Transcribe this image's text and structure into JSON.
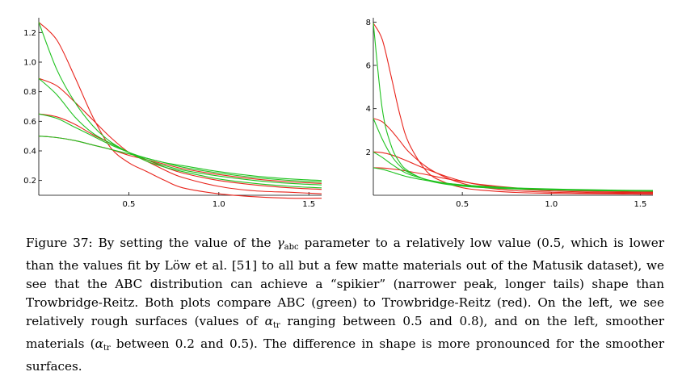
{
  "chart_data": [
    {
      "type": "line",
      "title": "",
      "xlabel": "",
      "ylabel": "",
      "xlim": [
        0,
        1.5708
      ],
      "ylim": [
        0.1,
        1.3
      ],
      "xticks": [
        "0.5",
        "1.0",
        "1.5"
      ],
      "yticks": [
        "0.2",
        "0.4",
        "0.6",
        "0.8",
        "1.0",
        "1.2"
      ],
      "grid": false,
      "x": [
        0.0,
        0.1,
        0.2,
        0.3,
        0.4,
        0.5,
        0.6,
        0.7,
        0.8,
        1.0,
        1.2,
        1.4,
        1.5708
      ],
      "series": [
        {
          "color": "#e8241c",
          "values": [
            1.27,
            1.15,
            0.9,
            0.63,
            0.42,
            0.32,
            0.26,
            0.2,
            0.15,
            0.11,
            0.09,
            0.08,
            0.08
          ]
        },
        {
          "color": "#e8241c",
          "values": [
            0.89,
            0.84,
            0.73,
            0.61,
            0.49,
            0.39,
            0.33,
            0.27,
            0.22,
            0.16,
            0.13,
            0.12,
            0.11
          ]
        },
        {
          "color": "#e8241c",
          "values": [
            0.65,
            0.63,
            0.58,
            0.51,
            0.45,
            0.39,
            0.34,
            0.29,
            0.25,
            0.2,
            0.17,
            0.15,
            0.14
          ]
        },
        {
          "color": "#e8241c",
          "values": [
            0.5,
            0.49,
            0.47,
            0.44,
            0.41,
            0.37,
            0.34,
            0.31,
            0.28,
            0.24,
            0.21,
            0.19,
            0.18
          ]
        },
        {
          "color": "#1fc21f",
          "values": [
            1.27,
            0.95,
            0.73,
            0.57,
            0.46,
            0.39,
            0.33,
            0.29,
            0.26,
            0.21,
            0.18,
            0.16,
            0.15
          ]
        },
        {
          "color": "#1fc21f",
          "values": [
            0.89,
            0.78,
            0.63,
            0.52,
            0.45,
            0.39,
            0.34,
            0.3,
            0.27,
            0.23,
            0.2,
            0.18,
            0.17
          ]
        },
        {
          "color": "#1fc21f",
          "values": [
            0.65,
            0.62,
            0.56,
            0.5,
            0.44,
            0.39,
            0.35,
            0.32,
            0.29,
            0.25,
            0.22,
            0.2,
            0.19
          ]
        },
        {
          "color": "#1fc21f",
          "values": [
            0.5,
            0.49,
            0.47,
            0.44,
            0.41,
            0.38,
            0.35,
            0.32,
            0.3,
            0.26,
            0.23,
            0.21,
            0.2
          ]
        }
      ]
    },
    {
      "type": "line",
      "title": "",
      "xlabel": "",
      "ylabel": "",
      "xlim": [
        0,
        1.5708
      ],
      "ylim": [
        0,
        8.2
      ],
      "xticks": [
        "0.5",
        "1.0",
        "1.5"
      ],
      "yticks": [
        "2",
        "4",
        "6",
        "8"
      ],
      "grid": false,
      "x": [
        0.0,
        0.05,
        0.1,
        0.15,
        0.2,
        0.3,
        0.4,
        0.5,
        0.6,
        0.8,
        1.0,
        1.2,
        1.4,
        1.5708
      ],
      "series": [
        {
          "color": "#e8241c",
          "values": [
            7.95,
            7.2,
            5.5,
            3.7,
            2.4,
            1.1,
            0.6,
            0.35,
            0.24,
            0.13,
            0.09,
            0.07,
            0.06,
            0.05
          ]
        },
        {
          "color": "#e8241c",
          "values": [
            3.55,
            3.4,
            3.0,
            2.5,
            2.0,
            1.3,
            0.85,
            0.55,
            0.38,
            0.21,
            0.14,
            0.11,
            0.09,
            0.08
          ]
        },
        {
          "color": "#e8241c",
          "values": [
            2.0,
            1.97,
            1.87,
            1.72,
            1.55,
            1.2,
            0.9,
            0.65,
            0.48,
            0.29,
            0.2,
            0.15,
            0.13,
            0.12
          ]
        },
        {
          "color": "#e8241c",
          "values": [
            1.27,
            1.26,
            1.22,
            1.17,
            1.1,
            0.95,
            0.78,
            0.63,
            0.5,
            0.34,
            0.25,
            0.2,
            0.17,
            0.15
          ]
        },
        {
          "color": "#1fc21f",
          "values": [
            7.95,
            4.0,
            2.3,
            1.5,
            1.1,
            0.7,
            0.52,
            0.42,
            0.36,
            0.29,
            0.25,
            0.22,
            0.2,
            0.19
          ]
        },
        {
          "color": "#1fc21f",
          "values": [
            3.55,
            2.6,
            1.85,
            1.35,
            1.05,
            0.72,
            0.55,
            0.45,
            0.38,
            0.3,
            0.26,
            0.23,
            0.21,
            0.2
          ]
        },
        {
          "color": "#1fc21f",
          "values": [
            2.0,
            1.75,
            1.45,
            1.18,
            0.97,
            0.72,
            0.57,
            0.47,
            0.4,
            0.32,
            0.27,
            0.24,
            0.22,
            0.21
          ]
        },
        {
          "color": "#1fc21f",
          "values": [
            1.27,
            1.2,
            1.08,
            0.95,
            0.84,
            0.68,
            0.56,
            0.48,
            0.42,
            0.34,
            0.29,
            0.26,
            0.23,
            0.22
          ]
        }
      ]
    }
  ],
  "caption": {
    "s1": "Figure 37: By setting the value of the ",
    "gamma": "γ",
    "gamma_sub": "abc",
    "s2": " parameter to a relatively low value (0.5, which is lower than the values fit by Löw et al. [51] to all but a few matte materials out of the Matusik dataset), we see that the ABC distribution can achieve a “spikier” (narrower peak, longer tails) shape than Trowbridge-Reitz. Both plots compare ABC (green) to Trowbridge-Reitz (red). On the left, we see relatively rough surfaces (values of ",
    "alpha": "α",
    "alpha_sub": "tr",
    "s3": " ranging between 0.5 and 0.8), and on the left, smoother materials (",
    "alpha2": "α",
    "alpha2_sub": "tr",
    "s4": " between 0.2 and 0.5). The difference in shape is more pronounced for the smoother surfaces."
  }
}
